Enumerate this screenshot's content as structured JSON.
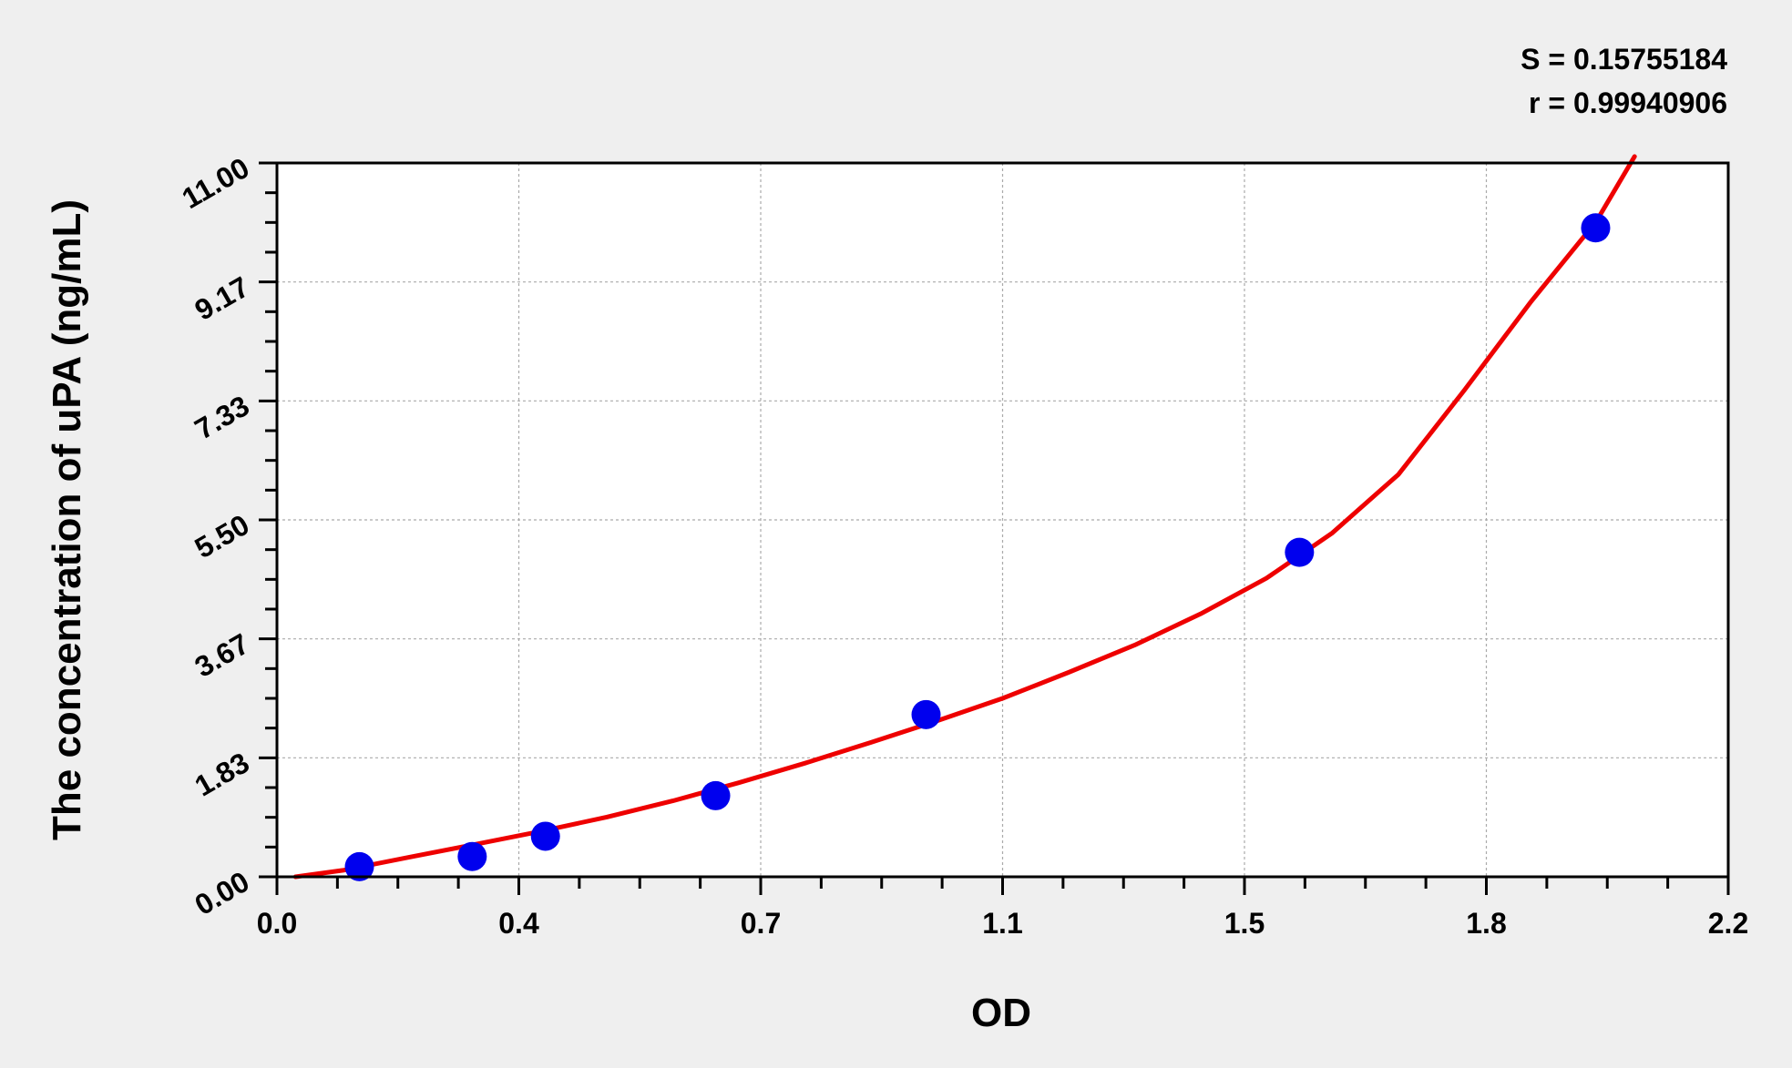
{
  "chart_data": {
    "type": "scatter",
    "title": "",
    "xlabel": "OD",
    "ylabel": "The concentration of uPA (ng/mL)",
    "xlim": [
      0,
      2.2
    ],
    "ylim": [
      0,
      11
    ],
    "x_ticks": [
      "0.0",
      "0.4",
      "0.7",
      "1.1",
      "1.5",
      "1.8",
      "2.2"
    ],
    "y_ticks": [
      "0.00",
      "1.83",
      "3.67",
      "5.50",
      "7.33",
      "9.17",
      "11.00"
    ],
    "grid": true,
    "annotations": [
      "S = 0.15755184",
      "r = 0.99940906"
    ],
    "points": {
      "x": [
        0.125,
        0.296,
        0.407,
        0.665,
        0.984,
        1.55,
        1.999
      ],
      "y": [
        0.156,
        0.313,
        0.625,
        1.25,
        2.5,
        5.0,
        10.0
      ],
      "color": "#0000ee"
    },
    "fit_curve": {
      "color": "#ee0000",
      "x": [
        0.028,
        0.1,
        0.2,
        0.3,
        0.4,
        0.5,
        0.6,
        0.7,
        0.8,
        0.9,
        1.0,
        1.1,
        1.2,
        1.3,
        1.4,
        1.5,
        1.6,
        1.7,
        1.8,
        1.9,
        2.0,
        2.058
      ],
      "y": [
        0,
        0.1,
        0.3,
        0.5,
        0.7,
        0.92,
        1.17,
        1.45,
        1.75,
        2.07,
        2.4,
        2.75,
        3.15,
        3.57,
        4.05,
        4.6,
        5.3,
        6.2,
        7.5,
        8.85,
        10.1,
        11.1
      ]
    }
  }
}
